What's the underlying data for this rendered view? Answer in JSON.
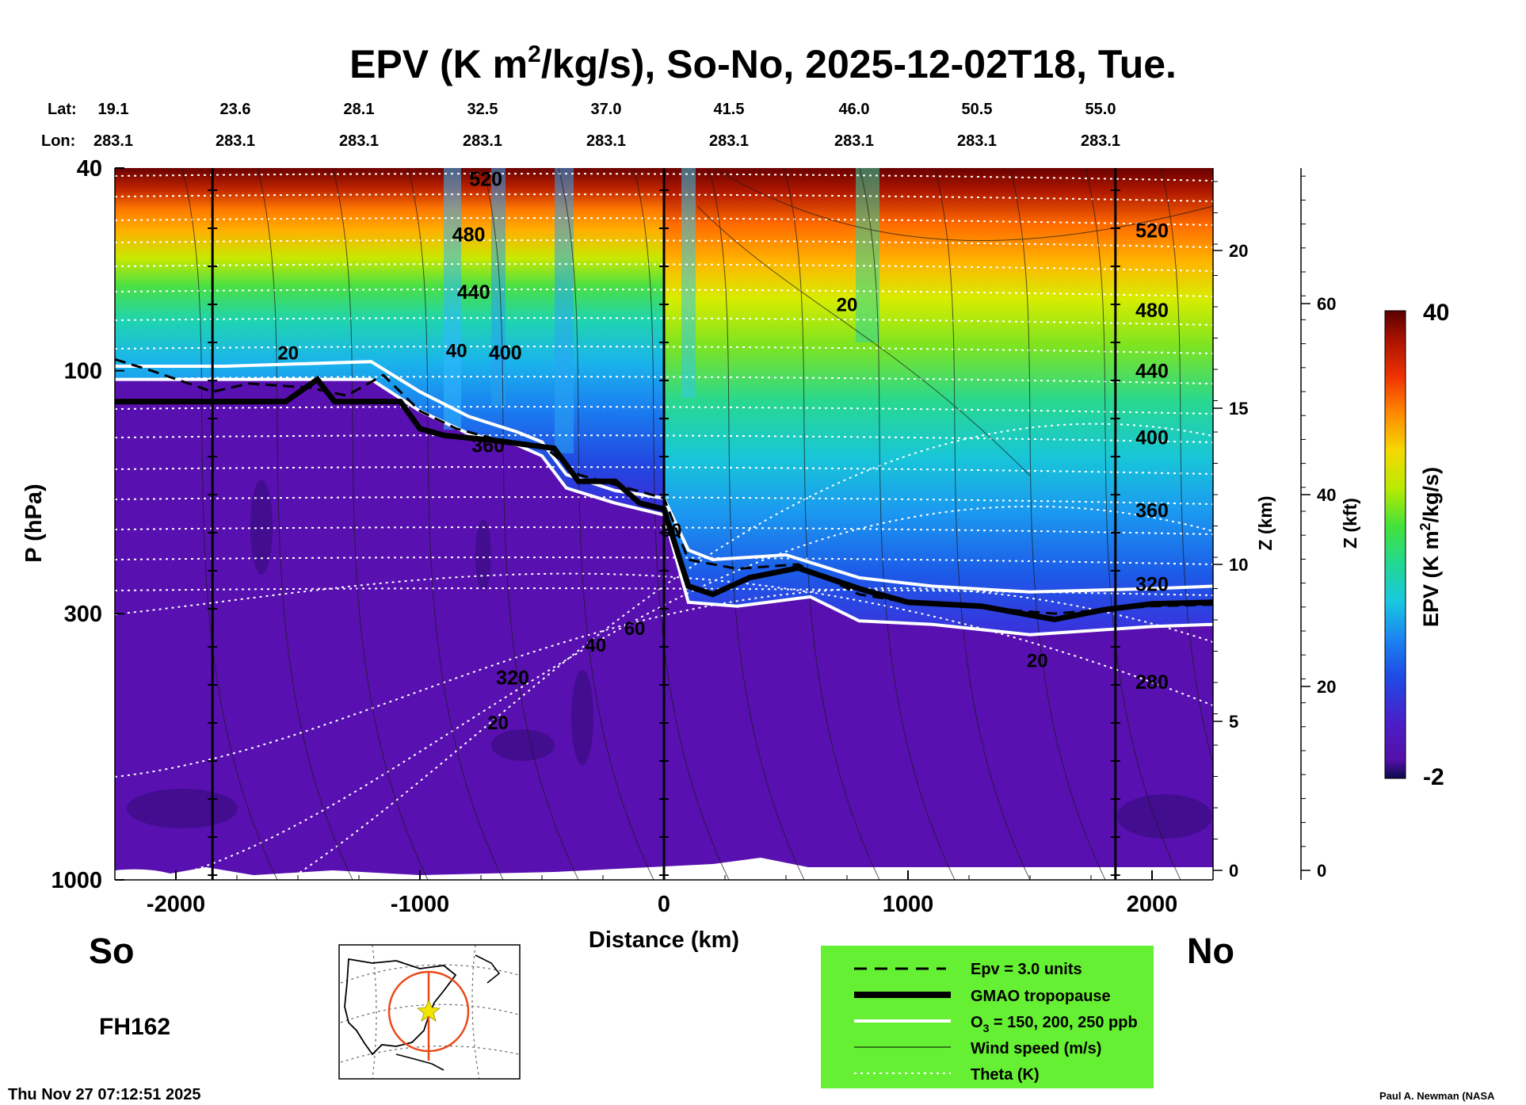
{
  "header": {
    "title_prefix": "EPV (K m",
    "title_sup": "2",
    "title_suffix": "/kg/s), So-No, 2025-12-02T18, Tue.",
    "lat_label": "Lat:",
    "lon_label": "Lon:",
    "lats": [
      "19.1",
      "23.6",
      "28.1",
      "32.5",
      "37.0",
      "41.5",
      "46.0",
      "50.5",
      "55.0"
    ],
    "lons": [
      "283.1",
      "283.1",
      "283.1",
      "283.1",
      "283.1",
      "283.1",
      "283.1",
      "283.1",
      "283.1"
    ]
  },
  "chart_data": {
    "type": "heatmap",
    "xlabel": "Distance (km)",
    "ylabel": "P (hPa)",
    "xlim": [
      -2250,
      2250
    ],
    "ylim": [
      1000,
      40
    ],
    "y_scale": "log",
    "x_ticks": [
      -2000,
      -1000,
      0,
      1000,
      2000
    ],
    "x_tick_labels": [
      "-2000",
      "-1000",
      "0",
      "1000",
      "2000"
    ],
    "y_ticks": [
      40,
      100,
      300,
      1000
    ],
    "y_tick_labels": [
      "40",
      "100",
      "300",
      "1000"
    ],
    "z_km_label": "Z (km)",
    "z_km_ticks": [
      "0",
      "5",
      "10",
      "15",
      "20"
    ],
    "z_kft_label": "Z (kft)",
    "z_kft_ticks": [
      "0",
      "20",
      "40",
      "60"
    ],
    "colorbar": {
      "label_prefix": "EPV (K m",
      "label_sup": "2",
      "label_suffix": "/kg/s)",
      "max_label": "40",
      "min_label": "-2",
      "min": -2,
      "max": 40
    },
    "vertical_markers_km": [
      -1850,
      0,
      1850
    ],
    "tropopause_gmao": [
      [
        -2250,
        115
      ],
      [
        -1550,
        115
      ],
      [
        -1420,
        104
      ],
      [
        -1350,
        115
      ],
      [
        -1080,
        115
      ],
      [
        -1000,
        130
      ],
      [
        -900,
        134
      ],
      [
        -700,
        137
      ],
      [
        -450,
        142
      ],
      [
        -350,
        165
      ],
      [
        -200,
        165
      ],
      [
        -100,
        182
      ],
      [
        0,
        187
      ],
      [
        100,
        265
      ],
      [
        200,
        275
      ],
      [
        350,
        255
      ],
      [
        550,
        244
      ],
      [
        800,
        268
      ],
      [
        1000,
        285
      ],
      [
        1300,
        290
      ],
      [
        1600,
        308
      ],
      [
        1800,
        295
      ],
      [
        2000,
        287
      ],
      [
        2250,
        285
      ]
    ],
    "ozone_upper": [
      [
        -2250,
        98
      ],
      [
        -1800,
        98
      ],
      [
        -1200,
        96
      ],
      [
        -1000,
        110
      ],
      [
        -800,
        123
      ],
      [
        -600,
        132
      ],
      [
        -500,
        138
      ],
      [
        -400,
        160
      ],
      [
        -200,
        172
      ],
      [
        0,
        178
      ],
      [
        100,
        225
      ],
      [
        200,
        235
      ],
      [
        500,
        230
      ],
      [
        800,
        255
      ],
      [
        1100,
        265
      ],
      [
        1500,
        272
      ],
      [
        2000,
        268
      ],
      [
        2250,
        265
      ]
    ],
    "ozone_lower": [
      [
        -2250,
        104
      ],
      [
        -1800,
        104
      ],
      [
        -1200,
        104
      ],
      [
        -1000,
        120
      ],
      [
        -800,
        133
      ],
      [
        -600,
        140
      ],
      [
        -500,
        147
      ],
      [
        -400,
        170
      ],
      [
        -200,
        182
      ],
      [
        0,
        192
      ],
      [
        100,
        285
      ],
      [
        300,
        290
      ],
      [
        600,
        278
      ],
      [
        800,
        310
      ],
      [
        1100,
        315
      ],
      [
        1500,
        330
      ],
      [
        2000,
        318
      ],
      [
        2250,
        315
      ]
    ],
    "epv_contour": [
      [
        -2250,
        95
      ],
      [
        -2100,
        100
      ],
      [
        -1850,
        110
      ],
      [
        -1700,
        106
      ],
      [
        -1450,
        108
      ],
      [
        -1300,
        112
      ],
      [
        -1150,
        102
      ],
      [
        -1000,
        120
      ],
      [
        -850,
        130
      ],
      [
        -700,
        136
      ],
      [
        -500,
        140
      ],
      [
        -350,
        160
      ],
      [
        -150,
        170
      ],
      [
        0,
        178
      ],
      [
        100,
        235
      ],
      [
        300,
        245
      ],
      [
        550,
        240
      ],
      [
        800,
        275
      ],
      [
        1000,
        285
      ],
      [
        1300,
        292
      ],
      [
        1600,
        300
      ],
      [
        2000,
        290
      ],
      [
        2250,
        288
      ]
    ],
    "theta_levels": [
      "280",
      "320",
      "360",
      "400",
      "440",
      "480",
      "520"
    ],
    "wind_labels": [
      "20",
      "40",
      "60",
      "80"
    ],
    "theta_k": {
      "left": [
        {
          "label": "520",
          "km": -730,
          "p": 42
        },
        {
          "label": "480",
          "km": -800,
          "p": 54
        },
        {
          "label": "440",
          "km": -780,
          "p": 70
        },
        {
          "label": "400",
          "km": -650,
          "p": 92
        },
        {
          "label": "360",
          "km": -720,
          "p": 140
        },
        {
          "label": "320",
          "km": -620,
          "p": 400
        }
      ],
      "right": [
        {
          "label": "520",
          "km": 2000,
          "p": 53
        },
        {
          "label": "480",
          "km": 2000,
          "p": 76
        },
        {
          "label": "440",
          "km": 2000,
          "p": 100
        },
        {
          "label": "400",
          "km": 2000,
          "p": 135
        },
        {
          "label": "360",
          "km": 2000,
          "p": 188
        },
        {
          "label": "320",
          "km": 2000,
          "p": 262
        },
        {
          "label": "280",
          "km": 2000,
          "p": 408
        }
      ]
    },
    "wind_ms": [
      {
        "label": "20",
        "km": 750,
        "p": 74
      },
      {
        "label": "40",
        "km": -850,
        "p": 91
      },
      {
        "label": "20",
        "km": -1540,
        "p": 92
      },
      {
        "label": "20",
        "km": -680,
        "p": 490
      },
      {
        "label": "40",
        "km": -280,
        "p": 345
      },
      {
        "label": "60",
        "km": -120,
        "p": 320
      },
      {
        "label": "80",
        "km": 30,
        "p": 205
      },
      {
        "label": "20",
        "km": 1530,
        "p": 370
      }
    ]
  },
  "panel": {
    "south_label": "So",
    "north_label": "No",
    "forecast_hour": "FH162"
  },
  "legend": {
    "bg_color": "#66f033",
    "items": {
      "epv_prefix": "Epv = 3.0 units",
      "tropopause": "GMAO tropopause",
      "ozone_prefix": "O",
      "ozone_sub": "3",
      "ozone_suffix": " = 150, 200, 250 ppb",
      "wind": "Wind speed (m/s)",
      "theta": "Theta (K)"
    }
  },
  "footer": {
    "timestamp": "Thu Nov 27 07:12:51 2025",
    "credit": "Paul A. Newman (NASA"
  },
  "map_inset": {
    "marker": "star"
  }
}
